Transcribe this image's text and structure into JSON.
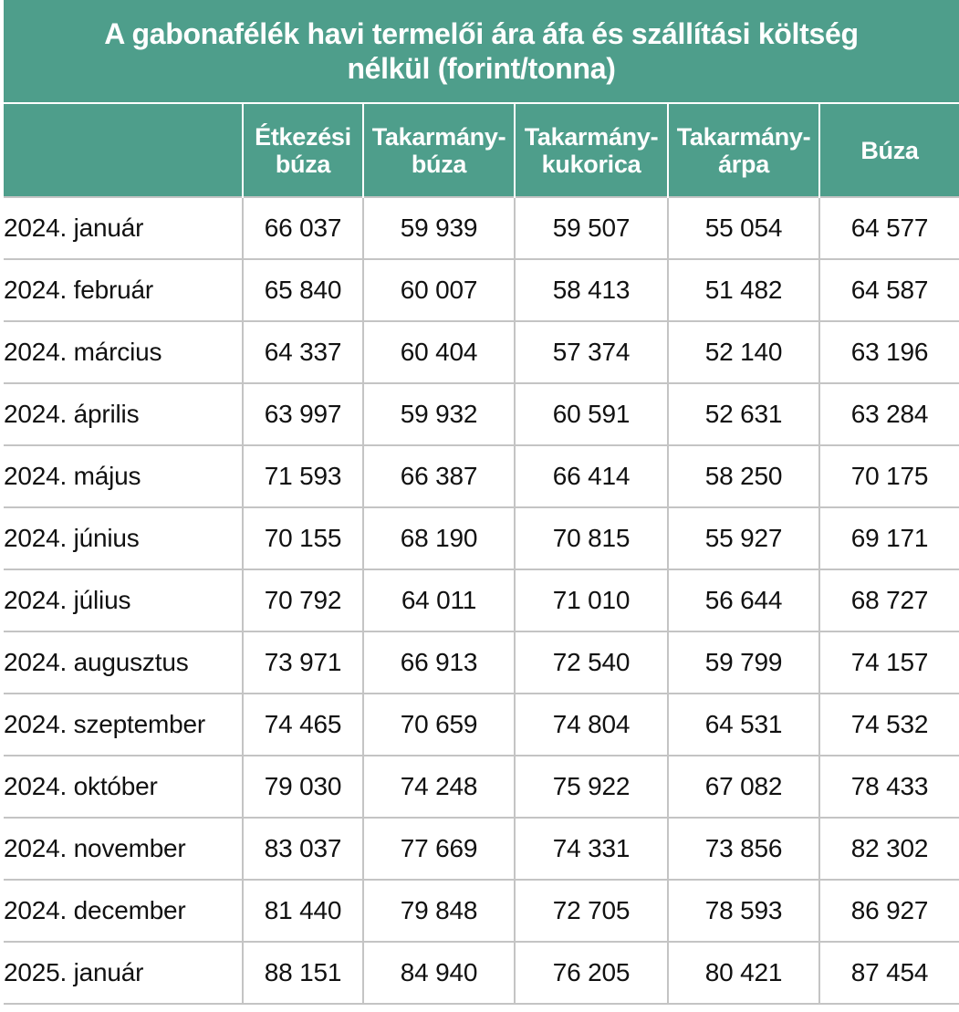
{
  "table": {
    "title_line1": "A gabonafélék havi termelői ára áfa és szállítási költség",
    "title_line2": "nélkül (forint/tonna)",
    "headers": [
      {
        "line1": "",
        "line2": ""
      },
      {
        "line1": "Étkezési",
        "line2": "búza"
      },
      {
        "line1": "Takarmány-",
        "line2": "búza"
      },
      {
        "line1": "Takarmány-",
        "line2": "kukorica"
      },
      {
        "line1": "Takarmány-",
        "line2": "árpa"
      },
      {
        "line1": "Búza",
        "line2": ""
      }
    ],
    "rows": [
      [
        "2024. január",
        "66 037",
        "59 939",
        "59 507",
        "55 054",
        "64 577"
      ],
      [
        "2024. február",
        "65 840",
        "60 007",
        "58 413",
        "51 482",
        "64 587"
      ],
      [
        "2024. március",
        "64 337",
        "60 404",
        "57 374",
        "52 140",
        "63 196"
      ],
      [
        "2024. április",
        "63 997",
        "59 932",
        "60 591",
        "52 631",
        "63 284"
      ],
      [
        "2024. május",
        "71 593",
        "66 387",
        "66 414",
        "58 250",
        "70 175"
      ],
      [
        "2024. június",
        "70 155",
        "68 190",
        "70 815",
        "55 927",
        "69 171"
      ],
      [
        "2024. július",
        "70 792",
        "64 011",
        "71 010",
        "56 644",
        "68 727"
      ],
      [
        "2024. augusztus",
        "73 971",
        "66 913",
        "72 540",
        "59 799",
        "74 157"
      ],
      [
        "2024. szeptember",
        "74 465",
        "70 659",
        "74 804",
        "64 531",
        "74 532"
      ],
      [
        "2024. október",
        "79 030",
        "74 248",
        "75 922",
        "67 082",
        "78 433"
      ],
      [
        "2024. november",
        "83 037",
        "77 669",
        "74 331",
        "73 856",
        "82 302"
      ],
      [
        "2024. december",
        "81 440",
        "79 848",
        "72 705",
        "78 593",
        "86 927"
      ],
      [
        "2025. január",
        "88 151",
        "84 940",
        "76 205",
        "80 421",
        "87 454"
      ]
    ]
  },
  "colors": {
    "header_bg": "#4e9e8b",
    "header_text": "#ffffff",
    "grid": "#c4c4c4",
    "body_text": "#111111"
  }
}
